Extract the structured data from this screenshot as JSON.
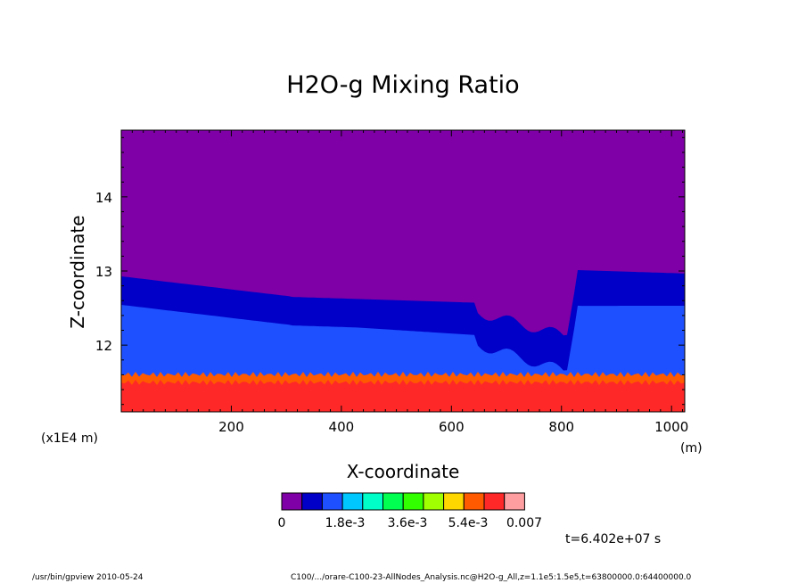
{
  "chart_data": {
    "type": "heatmap",
    "title": "H2O-g Mixing Ratio",
    "xlabel": "X-coordinate",
    "ylabel": "Z-coordinate",
    "x_unit": "(m)",
    "y_unit": "(x1E4 m)",
    "xlim": [
      0,
      1024
    ],
    "ylim": [
      11.1,
      14.9
    ],
    "x_ticks": [
      200,
      400,
      600,
      800,
      1000
    ],
    "y_ticks": [
      12,
      13,
      14
    ],
    "x_tick_labels": [
      "200",
      "400",
      "600",
      "800",
      "1000"
    ],
    "y_tick_labels": [
      "12",
      "13",
      "14"
    ],
    "colorbar": {
      "colors": [
        "#7f00a6",
        "#0000c8",
        "#1e50ff",
        "#00c8ff",
        "#00ffc8",
        "#00ff50",
        "#32ff00",
        "#a0ff00",
        "#ffd700",
        "#ff5a00",
        "#ff2828",
        "#ff9ea0"
      ],
      "tick_labels": [
        "0",
        "1.8e-3",
        "3.6e-3",
        "5.4e-3",
        "0.007"
      ]
    },
    "annotation": "t=6.402e+07 s",
    "footer_left": "/usr/bin/gpview  2010-05-24",
    "footer_right": "C100/.../orare-C100-23-AllNodes_Analysis.nc@H2O-g_All,z=1.1e5:1.5e5,t=63800000.0:64400000.0",
    "field_colors": {
      "background": "#7f00a6",
      "bands": [
        "#0000c8",
        "#1e50ff",
        "#00c8ff",
        "#00ffc8",
        "#00ff50",
        "#32ff00",
        "#a0ff00",
        "#ffd700",
        "#ff5a00",
        "#ff2828"
      ]
    }
  }
}
